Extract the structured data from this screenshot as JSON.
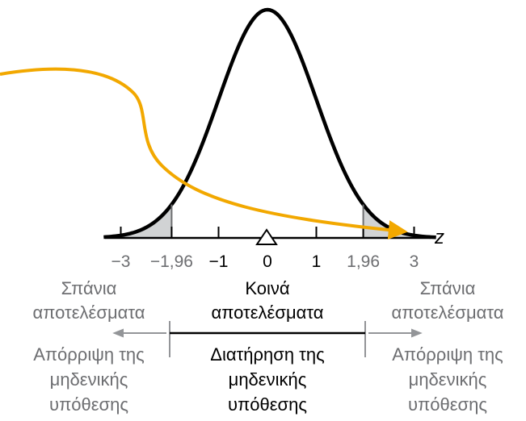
{
  "axis": {
    "variable": "z",
    "ticks": [
      {
        "value": -3,
        "label": "−3",
        "emphasis": false
      },
      {
        "value": -1.96,
        "label": "−1,96",
        "emphasis": false
      },
      {
        "value": -1,
        "label": "−1",
        "emphasis": true
      },
      {
        "value": 0,
        "label": "0",
        "emphasis": true
      },
      {
        "value": 1,
        "label": "1",
        "emphasis": true
      },
      {
        "value": 1.96,
        "label": "1,96",
        "emphasis": false
      },
      {
        "value": 3,
        "label": "3",
        "emphasis": false
      }
    ],
    "range": [
      -3.35,
      3.45
    ]
  },
  "curve": {
    "type": "standard-normal",
    "shaded_tails": {
      "lower": [
        -3.35,
        -1.96
      ],
      "upper": [
        1.96,
        3.45
      ]
    }
  },
  "regions": {
    "left": {
      "title": [
        "Σπάνια",
        "αποτελέσματα"
      ],
      "decision": [
        "Απόρριψη της",
        "μηδενικής",
        "υπόθεσης"
      ]
    },
    "middle": {
      "title": [
        "Κοινά",
        "αποτελέσματα"
      ],
      "decision": [
        "Διατήρηση της",
        "μηδενικής",
        "υπόθεσης"
      ]
    },
    "right": {
      "title": [
        "Σπάνια",
        "αποτελέσματα"
      ],
      "decision": [
        "Απόρριψη της",
        "μηδενικής",
        "υπόθεσης"
      ]
    }
  },
  "colors": {
    "curve": "#000000",
    "tail_fill": "#d1d3d4",
    "pointer_arrow": "#f2a800",
    "gray_text": "#6d6e71",
    "axis": "#000000"
  }
}
